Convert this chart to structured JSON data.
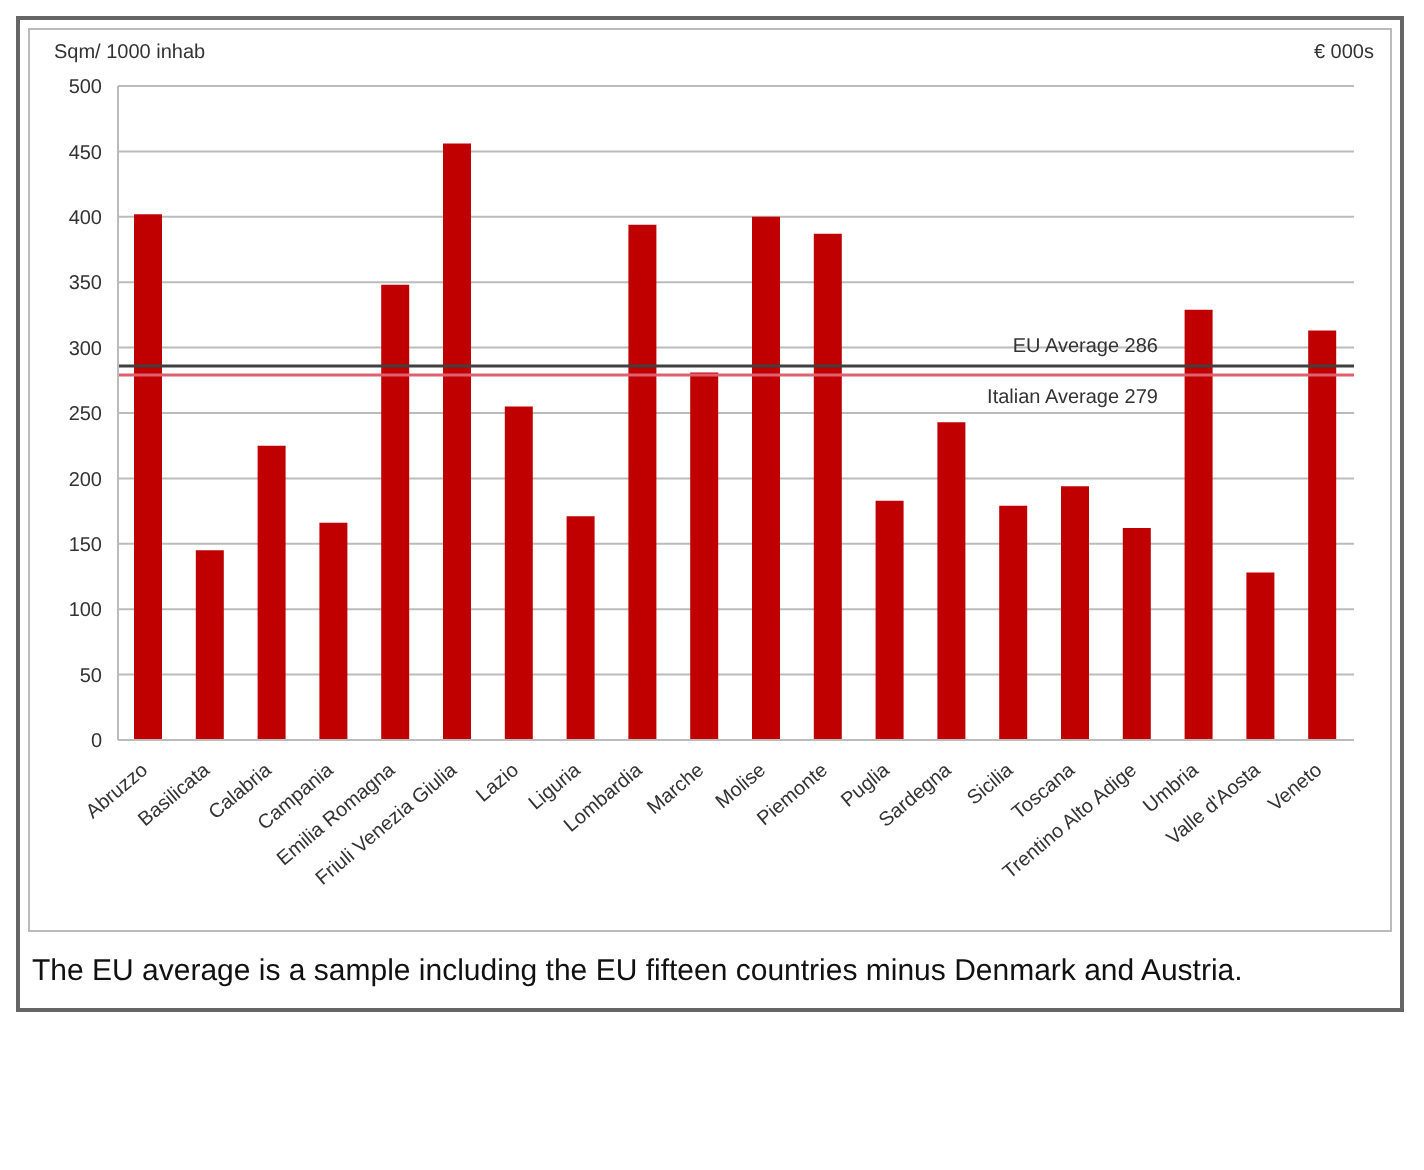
{
  "chart_data": {
    "type": "bar",
    "ylabel": "Sqm/ 1000 inhab",
    "y2label": "€ 000s",
    "categories": [
      "Abruzzo",
      "Basilicata",
      "Calabria",
      "Campania",
      "Emilia Romagna",
      "Friuli Venezia Giulia",
      "Lazio",
      "Liguria",
      "Lombardia",
      "Marche",
      "Molise",
      "Piemonte",
      "Puglia",
      "Sardegna",
      "Sicilia",
      "Toscana",
      "Trentino Alto Adige",
      "Umbria",
      "Valle d'Aosta",
      "Veneto"
    ],
    "values": [
      402,
      145,
      225,
      166,
      348,
      456,
      255,
      171,
      394,
      281,
      400,
      387,
      183,
      243,
      179,
      194,
      162,
      329,
      128,
      313
    ],
    "color": "#c00000",
    "ylim": [
      0,
      500
    ],
    "yticks": [
      0,
      50,
      100,
      150,
      200,
      250,
      300,
      350,
      400,
      450,
      500
    ],
    "grid": "y",
    "ref_lines": [
      {
        "axis": "y",
        "value": 286,
        "label": "EU Average 286",
        "color": "#404040"
      },
      {
        "axis": "y",
        "value": 279,
        "label": "Italian  Average 279",
        "color": "#e06070"
      }
    ],
    "annotations": [
      "The EU average is a sample including the EU fifteen countries minus Denmark and Austria."
    ]
  }
}
